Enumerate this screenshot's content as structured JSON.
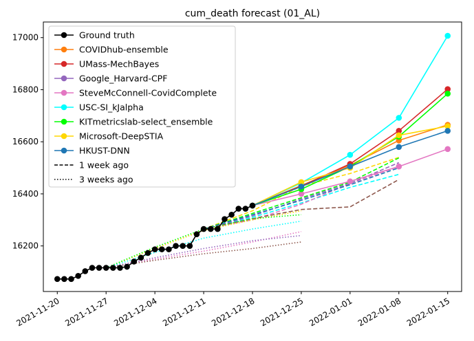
{
  "chart_data": {
    "type": "line",
    "title": "cum_death forecast (01_AL)",
    "xlabel": "",
    "ylabel": "",
    "x_ticks": [
      "2021-11-20",
      "2021-11-27",
      "2021-12-04",
      "2021-12-11",
      "2021-12-18",
      "2021-12-25",
      "2022-01-01",
      "2022-01-08",
      "2022-01-15"
    ],
    "y_ticks": [
      16200,
      16400,
      16600,
      16800,
      17000
    ],
    "xlim": [
      "2021-11-18",
      "2022-01-17"
    ],
    "ylim": [
      16025,
      17060
    ],
    "grid": false,
    "legend_position": "upper-left",
    "ground_truth": {
      "name": "Ground truth",
      "color": "#000000",
      "x": [
        "2021-11-20",
        "2021-11-21",
        "2021-11-22",
        "2021-11-23",
        "2021-11-24",
        "2021-11-25",
        "2021-11-26",
        "2021-11-27",
        "2021-11-28",
        "2021-11-29",
        "2021-11-30",
        "2021-12-01",
        "2021-12-02",
        "2021-12-03",
        "2021-12-04",
        "2021-12-05",
        "2021-12-06",
        "2021-12-07",
        "2021-12-08",
        "2021-12-09",
        "2021-12-10",
        "2021-12-11",
        "2021-12-12",
        "2021-12-13",
        "2021-12-14",
        "2021-12-15",
        "2021-12-16",
        "2021-12-17",
        "2021-12-18"
      ],
      "y": [
        16073,
        16073,
        16073,
        16085,
        16103,
        16116,
        16116,
        16116,
        16116,
        16116,
        16120,
        16140,
        16155,
        16173,
        16187,
        16187,
        16187,
        16200,
        16200,
        16200,
        16245,
        16265,
        16265,
        16265,
        16303,
        16320,
        16343,
        16343,
        16355
      ]
    },
    "series": [
      {
        "name": "COVIDhub-ensemble",
        "color": "#ff7f0e",
        "x": [
          "2021-12-18",
          "2021-12-25",
          "2022-01-01",
          "2022-01-08",
          "2022-01-15"
        ],
        "y": [
          16355,
          16432,
          16510,
          16605,
          16665
        ]
      },
      {
        "name": "UMass-MechBayes",
        "color": "#d62728",
        "x": [
          "2021-12-18",
          "2021-12-25",
          "2022-01-01",
          "2022-01-08",
          "2022-01-15"
        ],
        "y": [
          16355,
          16430,
          16515,
          16642,
          16802
        ]
      },
      {
        "name": "Google_Harvard-CPF",
        "color": "#9467bd",
        "x": [],
        "y": []
      },
      {
        "name": "SteveMcConnell-CovidComplete",
        "color": "#e377c2",
        "x": [
          "2021-12-18",
          "2021-12-25",
          "2022-01-01",
          "2022-01-08",
          "2022-01-15"
        ],
        "y": [
          16355,
          16400,
          16448,
          16505,
          16572
        ]
      },
      {
        "name": "USC-SI_kJalpha",
        "color": "#00ffff",
        "x": [
          "2021-12-18",
          "2021-12-25",
          "2022-01-01",
          "2022-01-08",
          "2022-01-15"
        ],
        "y": [
          16355,
          16442,
          16550,
          16692,
          17007
        ]
      },
      {
        "name": "KITmetricslab-select_ensemble",
        "color": "#00ff00",
        "x": [
          "2021-12-18",
          "2021-12-25",
          "2022-01-01",
          "2022-01-08",
          "2022-01-15"
        ],
        "y": [
          16355,
          16418,
          16505,
          16620,
          16785
        ]
      },
      {
        "name": "Microsoft-DeepSTIA",
        "color": "#ffd700",
        "x": [
          "2021-12-18",
          "2021-12-25",
          "2022-01-01",
          "2022-01-08",
          "2022-01-15"
        ],
        "y": [
          16355,
          16445,
          16500,
          16625,
          16660
        ]
      },
      {
        "name": "HKUST-DNN",
        "color": "#1f77b4",
        "x": [
          "2021-12-18",
          "2021-12-25",
          "2022-01-01",
          "2022-01-08",
          "2022-01-15"
        ],
        "y": [
          16355,
          16428,
          16505,
          16580,
          16642
        ]
      }
    ],
    "older_forecasts": [
      {
        "label": "1 week ago",
        "lines": [
          {
            "color": "#ffd700",
            "x": [
              "2021-12-11",
              "2021-12-18",
              "2021-12-25",
              "2022-01-01",
              "2022-01-08"
            ],
            "y": [
              16265,
              16335,
              16430,
              16478,
              16540
            ]
          },
          {
            "color": "#00ff00",
            "x": [
              "2021-12-11",
              "2021-12-18",
              "2021-12-25",
              "2022-01-01",
              "2022-01-08"
            ],
            "y": [
              16265,
              16325,
              16385,
              16445,
              16538
            ]
          },
          {
            "color": "#00ffff",
            "x": [
              "2021-12-11",
              "2021-12-18",
              "2021-12-25",
              "2022-01-01",
              "2022-01-08"
            ],
            "y": [
              16265,
              16310,
              16365,
              16425,
              16475
            ]
          },
          {
            "color": "#e377c2",
            "x": [
              "2021-12-11",
              "2021-12-18",
              "2021-12-25",
              "2022-01-01",
              "2022-01-08"
            ],
            "y": [
              16265,
              16300,
              16360,
              16440,
              16505
            ]
          },
          {
            "color": "#9467bd",
            "x": [
              "2021-12-11",
              "2021-12-18",
              "2021-12-25",
              "2022-01-01",
              "2022-01-08"
            ],
            "y": [
              16265,
              16315,
              16380,
              16440,
              16520
            ]
          },
          {
            "color": "#8c564b",
            "x": [
              "2021-12-11",
              "2021-12-18",
              "2021-12-25",
              "2022-01-01",
              "2022-01-08"
            ],
            "y": [
              16265,
              16305,
              16340,
              16350,
              16455
            ]
          },
          {
            "color": "#1f77b4",
            "x": [
              "2021-12-11",
              "2021-12-18",
              "2021-12-25",
              "2022-01-01",
              "2022-01-08"
            ],
            "y": [
              16265,
              16320,
              16375,
              16435,
              16500
            ]
          }
        ]
      },
      {
        "label": "3 weeks ago",
        "lines": [
          {
            "color": "#ffd700",
            "x": [
              "2021-11-27",
              "2021-12-04",
              "2021-12-11",
              "2021-12-18",
              "2021-12-25"
            ],
            "y": [
              16116,
              16190,
              16260,
              16300,
              16335
            ]
          },
          {
            "color": "#00ff00",
            "x": [
              "2021-11-27",
              "2021-12-04",
              "2021-12-11",
              "2021-12-18",
              "2021-12-25"
            ],
            "y": [
              16116,
              16195,
              16265,
              16305,
              16320
            ]
          },
          {
            "color": "#00ffff",
            "x": [
              "2021-11-27",
              "2021-12-04",
              "2021-12-11",
              "2021-12-18",
              "2021-12-25"
            ],
            "y": [
              16116,
              16175,
              16230,
              16265,
              16295
            ]
          },
          {
            "color": "#e377c2",
            "x": [
              "2021-11-27",
              "2021-12-04",
              "2021-12-11",
              "2021-12-18",
              "2021-12-25"
            ],
            "y": [
              16116,
              16150,
              16180,
              16215,
              16255
            ]
          },
          {
            "color": "#9467bd",
            "x": [
              "2021-11-27",
              "2021-12-04",
              "2021-12-11",
              "2021-12-18",
              "2021-12-25"
            ],
            "y": [
              16116,
              16155,
              16190,
              16220,
              16240
            ]
          },
          {
            "color": "#8c564b",
            "x": [
              "2021-11-27",
              "2021-12-04",
              "2021-12-11",
              "2021-12-18",
              "2021-12-25"
            ],
            "y": [
              16116,
              16145,
              16170,
              16190,
              16215
            ]
          }
        ]
      }
    ],
    "legend": [
      {
        "label": "Ground truth",
        "color": "#000000",
        "style": "solid-marker"
      },
      {
        "label": "COVIDhub-ensemble",
        "color": "#ff7f0e",
        "style": "solid-marker"
      },
      {
        "label": "UMass-MechBayes",
        "color": "#d62728",
        "style": "solid-marker"
      },
      {
        "label": "Google_Harvard-CPF",
        "color": "#9467bd",
        "style": "solid-marker"
      },
      {
        "label": "SteveMcConnell-CovidComplete",
        "color": "#e377c2",
        "style": "solid-marker"
      },
      {
        "label": "USC-SI_kJalpha",
        "color": "#00ffff",
        "style": "solid-marker"
      },
      {
        "label": "KITmetricslab-select_ensemble",
        "color": "#00ff00",
        "style": "solid-marker"
      },
      {
        "label": "Microsoft-DeepSTIA",
        "color": "#ffd700",
        "style": "solid-marker"
      },
      {
        "label": "HKUST-DNN",
        "color": "#1f77b4",
        "style": "solid-marker"
      },
      {
        "label": "1 week ago",
        "color": "#000000",
        "style": "dashed"
      },
      {
        "label": "3 weeks ago",
        "color": "#000000",
        "style": "dotted"
      }
    ]
  }
}
